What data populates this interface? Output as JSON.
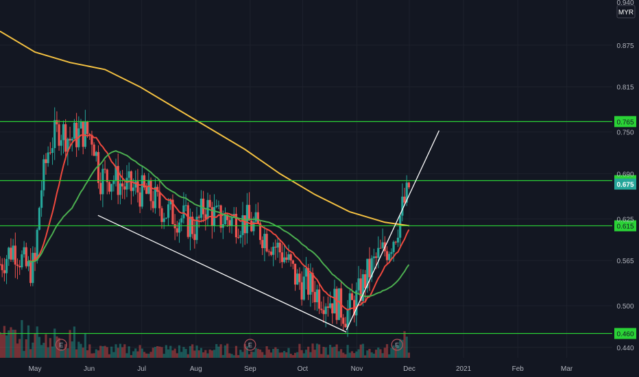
{
  "chart_data": {
    "type": "candlestick",
    "currency": "MYR",
    "y_range": [
      0.425,
      0.94
    ],
    "y_ticks": [
      "0.875",
      "0.815",
      "0.750",
      "0.690",
      "0.625",
      "0.565",
      "0.500",
      "0.440"
    ],
    "y_tick_values": [
      0.875,
      0.815,
      0.75,
      0.69,
      0.625,
      0.565,
      0.5,
      0.44
    ],
    "top_tick": "0.940",
    "x_labels": [
      "May",
      "Jun",
      "Jul",
      "Aug",
      "Sep",
      "Oct",
      "Nov",
      "Dec",
      "2021",
      "Feb",
      "Mar"
    ],
    "x_label_days": [
      0,
      31,
      61,
      92,
      123,
      153,
      184,
      214,
      245,
      276,
      304
    ],
    "x_range_days": [
      -20,
      330
    ],
    "horizontal_levels": [
      {
        "label": "0.765",
        "value": 0.765
      },
      {
        "label": "0.680",
        "value": 0.68
      },
      {
        "label": "0.615",
        "value": 0.615
      },
      {
        "label": "0.460",
        "value": 0.46
      }
    ],
    "last_price": {
      "label": "0.675",
      "value": 0.675
    },
    "earnings_day_marker": "E",
    "earnings_days": [
      15,
      123,
      207
    ],
    "trend_lines": [
      {
        "from": {
          "day": 36,
          "price": 0.63
        },
        "to": {
          "day": 178,
          "price": 0.462
        }
      },
      {
        "from": {
          "day": 178,
          "price": 0.465
        },
        "to": {
          "day": 231,
          "price": 0.752
        }
      }
    ],
    "colors": {
      "up": "#26a69a",
      "down": "#ef5350",
      "level": "#2ad336",
      "ma_yellow": "#f5c242",
      "ma_red": "#f0493e",
      "ma_green": "#4caf50",
      "trend": "#ffffff"
    }
  }
}
